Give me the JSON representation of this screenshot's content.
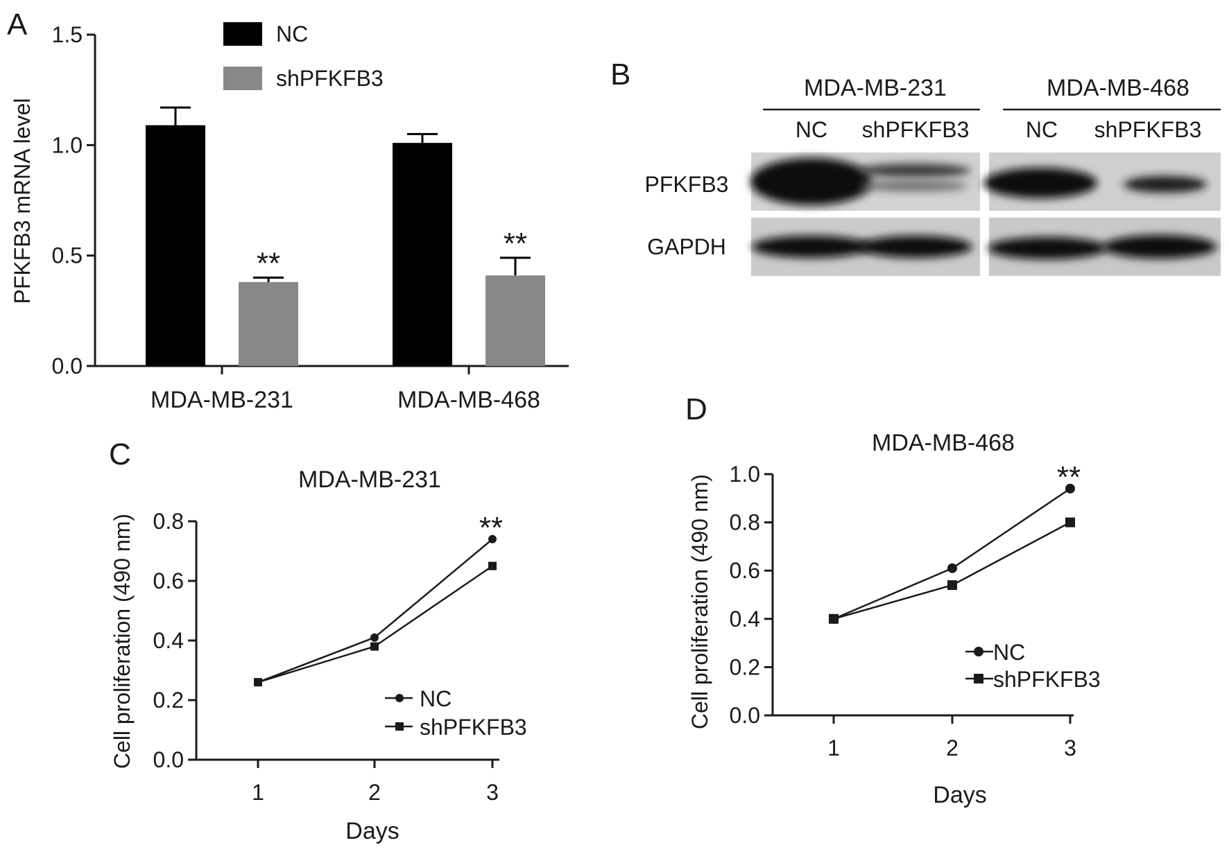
{
  "chart_data": [
    {
      "panel": "A",
      "type": "bar",
      "title": "",
      "xlabel": "",
      "ylabel": "PFKFB3 mRNA level",
      "ylim": [
        0,
        1.5
      ],
      "yticks": [
        "0.0",
        "0.5",
        "1.0",
        "1.5"
      ],
      "categories": [
        "MDA-MB-231",
        "MDA-MB-468"
      ],
      "series": [
        {
          "name": "NC",
          "color": "#000000",
          "values": [
            1.09,
            1.01
          ],
          "errors": [
            0.08,
            0.04
          ]
        },
        {
          "name": "shPFKFB3",
          "color": "#888888",
          "values": [
            0.38,
            0.41
          ],
          "errors": [
            0.02,
            0.08
          ]
        }
      ],
      "annotations": [
        "**",
        "**"
      ],
      "legend": "top-left"
    },
    {
      "panel": "C",
      "type": "line",
      "title": "MDA-MB-231",
      "xlabel": "Days",
      "ylabel": "Cell proliferation (490 nm)",
      "x": [
        1,
        2,
        3
      ],
      "ylim": [
        0,
        0.8
      ],
      "yticks": [
        "0.0",
        "0.2",
        "0.4",
        "0.6",
        "0.8"
      ],
      "xticks": [
        "1",
        "2",
        "3"
      ],
      "series": [
        {
          "name": "NC",
          "marker": "circle",
          "values": [
            0.26,
            0.41,
            0.74
          ]
        },
        {
          "name": "shPFKFB3",
          "marker": "square",
          "values": [
            0.26,
            0.38,
            0.65
          ]
        }
      ],
      "annotations": [
        "**"
      ],
      "legend": "bottom-right"
    },
    {
      "panel": "D",
      "type": "line",
      "title": "MDA-MB-468",
      "xlabel": "Days",
      "ylabel": "Cell proliferation (490 nm)",
      "x": [
        1,
        2,
        3
      ],
      "ylim": [
        0,
        1.0
      ],
      "yticks": [
        "0.0",
        "0.2",
        "0.4",
        "0.6",
        "0.8",
        "1.0"
      ],
      "xticks": [
        "1",
        "2",
        "3"
      ],
      "series": [
        {
          "name": "NC",
          "marker": "circle",
          "values": [
            0.4,
            0.61,
            0.94
          ]
        },
        {
          "name": "shPFKFB3",
          "marker": "square",
          "values": [
            0.4,
            0.54,
            0.8
          ]
        }
      ],
      "annotations": [
        "**"
      ],
      "legend": "bottom-right"
    }
  ],
  "panel_letters": {
    "a": "A",
    "b": "B",
    "c": "C",
    "d": "D"
  },
  "western_blot": {
    "groups": [
      "MDA-MB-231",
      "MDA-MB-468"
    ],
    "lanes": [
      "NC",
      "shPFKFB3",
      "NC",
      "shPFKFB3"
    ],
    "rows": [
      "PFKFB3",
      "GAPDH"
    ]
  }
}
